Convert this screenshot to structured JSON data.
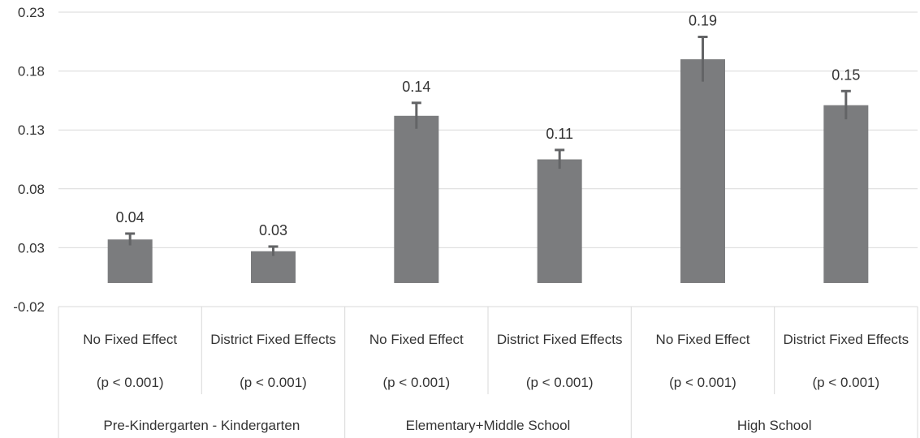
{
  "chart_data": {
    "type": "bar",
    "title": "",
    "xlabel": "",
    "ylabel": "",
    "ylim": [
      -0.02,
      0.23
    ],
    "yticks": [
      "0.23",
      "0.18",
      "0.13",
      "0.08",
      "0.03",
      "-0.02"
    ],
    "ytick_values": [
      0.23,
      0.18,
      0.13,
      0.08,
      0.03,
      -0.02
    ],
    "grid": true,
    "bar_color": "#7b7c7e",
    "error_color": "#636466",
    "groups": [
      {
        "label": "Pre-Kindergarten - Kindergarten",
        "bars": [
          {
            "label": "No Fixed Effect",
            "p_label": "(p < 0.001)",
            "value": 0.037,
            "value_label": "0.04",
            "error": 0.005
          },
          {
            "label": "District Fixed Effects",
            "p_label": "(p < 0.001)",
            "value": 0.027,
            "value_label": "0.03",
            "error": 0.004
          }
        ]
      },
      {
        "label": "Elementary+Middle School",
        "bars": [
          {
            "label": "No Fixed Effect",
            "p_label": "(p < 0.001)",
            "value": 0.142,
            "value_label": "0.14",
            "error": 0.011
          },
          {
            "label": "District Fixed Effects",
            "p_label": "(p < 0.001)",
            "value": 0.105,
            "value_label": "0.11",
            "error": 0.008
          }
        ]
      },
      {
        "label": "High School",
        "bars": [
          {
            "label": "No Fixed Effect",
            "p_label": "(p < 0.001)",
            "value": 0.19,
            "value_label": "0.19",
            "error": 0.019
          },
          {
            "label": "District Fixed Effects",
            "p_label": "(p < 0.001)",
            "value": 0.151,
            "value_label": "0.15",
            "error": 0.012
          }
        ]
      }
    ]
  }
}
